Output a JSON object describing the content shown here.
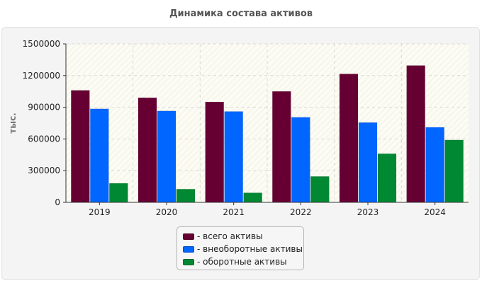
{
  "chart_data": {
    "type": "bar",
    "title": "Динамика состава активов",
    "xlabel": "",
    "ylabel": "тыс.",
    "ylim": [
      0,
      1500000
    ],
    "yticks": [
      0,
      300000,
      600000,
      900000,
      1200000,
      1500000
    ],
    "categories": [
      "2019",
      "2020",
      "2021",
      "2022",
      "2023",
      "2024"
    ],
    "series": [
      {
        "name": "- всего активы",
        "color": "#660033",
        "values": [
          1060000,
          990000,
          950000,
          1050000,
          1215000,
          1295000
        ]
      },
      {
        "name": "- внеоборотные активы",
        "color": "#0066ff",
        "values": [
          885000,
          865000,
          860000,
          805000,
          755000,
          710000
        ]
      },
      {
        "name": "- оборотные активы",
        "color": "#008833",
        "values": [
          180000,
          125000,
          90000,
          245000,
          460000,
          590000
        ]
      }
    ],
    "grid": true,
    "legend_position": "bottom-center"
  }
}
